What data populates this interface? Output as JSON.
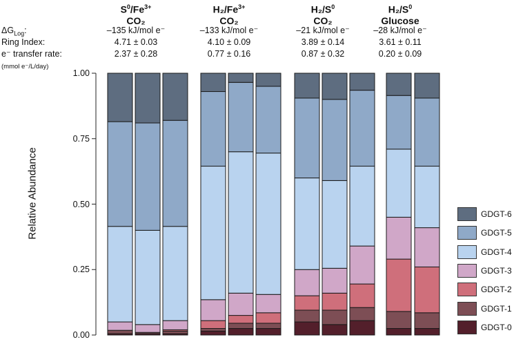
{
  "chart_data": {
    "type": "stacked-bar",
    "ylabel": "Relative Abundance",
    "ylim": [
      0,
      1
    ],
    "yticks": [
      "0.00",
      "0.25",
      "0.50",
      "0.75",
      "1.00"
    ],
    "ytick_values": [
      0,
      0.25,
      0.5,
      0.75,
      1.0
    ],
    "row_labels": {
      "dg_main": "ΔG",
      "dg_sub": "Log",
      "dg_tail": ":",
      "ring_index": "Ring Index:",
      "transfer_rate": "e⁻ transfer rate:",
      "units": "(mmol e⁻/L/day)"
    },
    "legend_placement": "bottom-right",
    "series": [
      {
        "name": "GDGT-0",
        "color": "#531f2b"
      },
      {
        "name": "GDGT-1",
        "color": "#7d4e55"
      },
      {
        "name": "GDGT-2",
        "color": "#cf6f7b"
      },
      {
        "name": "GDGT-3",
        "color": "#d0a7c8"
      },
      {
        "name": "GDGT-4",
        "color": "#b9d3ef"
      },
      {
        "name": "GDGT-5",
        "color": "#8fa9c8"
      },
      {
        "name": "GDGT-6",
        "color": "#5e6d80"
      }
    ],
    "groups": [
      {
        "title_line1": "S",
        "title_sup1": "0",
        "title_mid": "/Fe",
        "title_sup2": "3+",
        "title_line2": "CO₂",
        "delta_g": "–135 kJ/mol e⁻",
        "ring_index": "4.71 ± 0.03",
        "transfer_rate": "2.37 ± 0.28",
        "bars": [
          [
            0.005,
            0.013,
            0.0,
            0.032,
            0.365,
            0.4,
            0.185
          ],
          [
            0.005,
            0.005,
            0.0,
            0.03,
            0.36,
            0.41,
            0.19
          ],
          [
            0.005,
            0.01,
            0.005,
            0.035,
            0.36,
            0.405,
            0.18
          ]
        ]
      },
      {
        "title_line1": "H",
        "title_sup1": "₂",
        "title_mid": "/Fe",
        "title_sup2": "3+",
        "title_line2": "CO₂",
        "delta_g": "–133 kJ/mol e⁻",
        "ring_index": "4.10 ± 0.09",
        "transfer_rate": "0.77 ± 0.16",
        "bars": [
          [
            0.015,
            0.01,
            0.03,
            0.08,
            0.51,
            0.285,
            0.07
          ],
          [
            0.025,
            0.02,
            0.03,
            0.085,
            0.54,
            0.265,
            0.035
          ],
          [
            0.025,
            0.02,
            0.04,
            0.07,
            0.54,
            0.255,
            0.05
          ]
        ]
      },
      {
        "title_line1": "H",
        "title_sup1": "₂",
        "title_mid": "/S",
        "title_sup2": "0",
        "title_line2": "CO₂",
        "delta_g": "–21 kJ/mol e⁻",
        "ring_index": "3.89 ± 0.14",
        "transfer_rate": "0.87 ± 0.32",
        "bars": [
          [
            0.05,
            0.045,
            0.055,
            0.1,
            0.35,
            0.305,
            0.095
          ],
          [
            0.04,
            0.055,
            0.065,
            0.095,
            0.335,
            0.31,
            0.1
          ],
          [
            0.055,
            0.05,
            0.09,
            0.145,
            0.305,
            0.29,
            0.065
          ]
        ]
      },
      {
        "title_line1": "H",
        "title_sup1": "₂",
        "title_mid": "/S",
        "title_sup2": "0",
        "title_line2": "Glucose",
        "delta_g": "–28 kJ/mol e⁻",
        "ring_index": "3.61 ± 0.11",
        "transfer_rate": "0.20 ± 0.09",
        "bars": [
          [
            0.025,
            0.065,
            0.2,
            0.16,
            0.26,
            0.205,
            0.085
          ],
          [
            0.025,
            0.06,
            0.175,
            0.15,
            0.235,
            0.26,
            0.095
          ]
        ]
      }
    ]
  }
}
